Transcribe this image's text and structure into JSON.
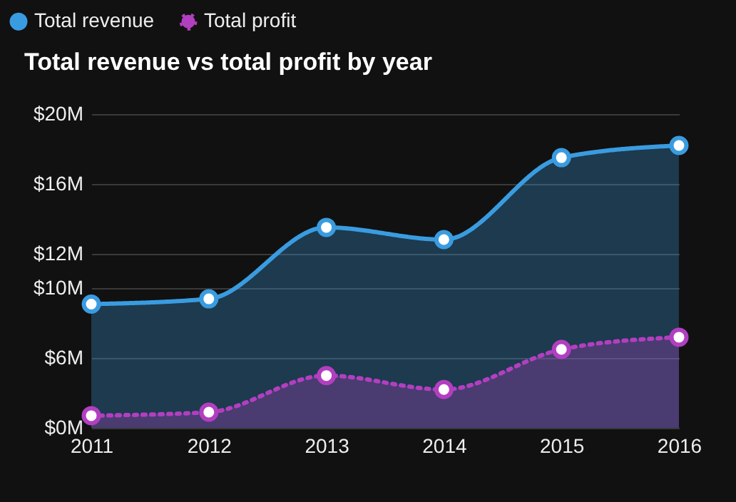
{
  "chart_data": {
    "type": "area",
    "title": "Total revenue vs total profit by year",
    "categories": [
      "2011",
      "2012",
      "2013",
      "2014",
      "2015",
      "2016"
    ],
    "series": [
      {
        "name": "Total revenue",
        "color": "#3a9ce0",
        "line_style": "solid",
        "values": [
          9.1,
          9.4,
          13.5,
          12.8,
          17.5,
          18.2
        ]
      },
      {
        "name": "Total profit",
        "color": "#b23fc0",
        "line_style": "dotted",
        "values": [
          2.7,
          2.9,
          5.0,
          4.2,
          6.5,
          7.2
        ]
      }
    ],
    "ylim": [
      2,
      20
    ],
    "yticks": [
      {
        "value": 2,
        "label": "$0M"
      },
      {
        "value": 6,
        "label": "$6M"
      },
      {
        "value": 10,
        "label": "$10M"
      },
      {
        "value": 12,
        "label": "$12M"
      },
      {
        "value": 16,
        "label": "$16M"
      },
      {
        "value": 20,
        "label": "$20M"
      }
    ],
    "grid": "y",
    "legend": "top left",
    "marker": "circle"
  }
}
